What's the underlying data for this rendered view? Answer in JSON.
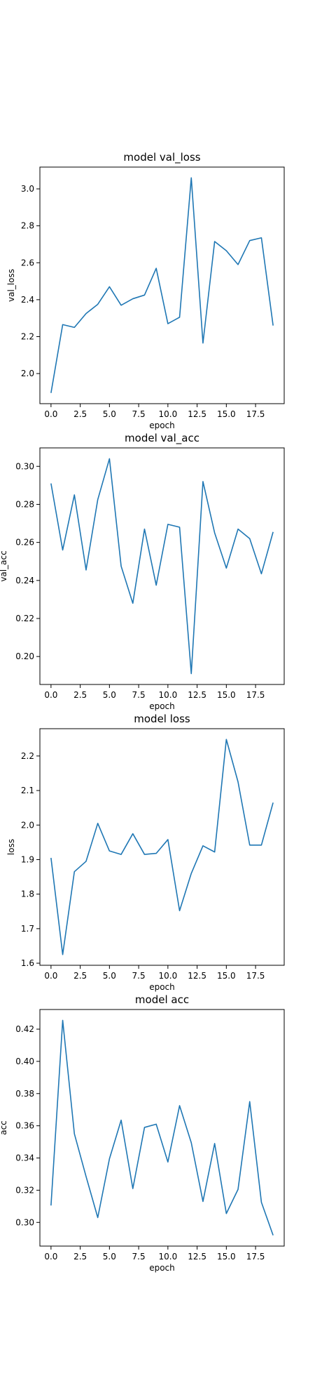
{
  "chart_data": [
    {
      "type": "line",
      "title": "model val_loss",
      "xlabel": "epoch",
      "ylabel": "val_loss",
      "x": [
        0,
        1,
        2,
        3,
        4,
        5,
        6,
        7,
        8,
        9,
        10,
        11,
        12,
        13,
        14,
        15,
        16,
        17,
        18,
        19
      ],
      "series": [
        {
          "values": [
            1.895,
            2.265,
            2.25,
            2.325,
            2.375,
            2.47,
            2.37,
            2.405,
            2.425,
            2.57,
            2.27,
            2.305,
            3.06,
            2.165,
            2.715,
            2.665,
            2.59,
            2.72,
            2.735,
            2.26
          ]
        }
      ],
      "xlim": [
        -0.95,
        19.95
      ],
      "ylim": [
        1.837,
        3.118
      ],
      "xticks": [
        0,
        2.5,
        5,
        7.5,
        10,
        12.5,
        15,
        17.5
      ],
      "xtick_labels": [
        "0.0",
        "2.5",
        "5.0",
        "7.5",
        "10.0",
        "12.5",
        "15.0",
        "17.5"
      ],
      "yticks": [
        2.0,
        2.2,
        2.4,
        2.6,
        2.8,
        3.0
      ],
      "ytick_labels": [
        "2.0",
        "2.2",
        "2.4",
        "2.6",
        "2.8",
        "3.0"
      ],
      "color": "#1f77b4",
      "grid": false
    },
    {
      "type": "line",
      "title": "model val_acc",
      "xlabel": "epoch",
      "ylabel": "val_acc",
      "x": [
        0,
        1,
        2,
        3,
        4,
        5,
        6,
        7,
        8,
        9,
        10,
        11,
        12,
        13,
        14,
        15,
        16,
        17,
        18,
        19
      ],
      "series": [
        {
          "values": [
            0.291,
            0.256,
            0.285,
            0.2455,
            0.2825,
            0.304,
            0.2475,
            0.228,
            0.267,
            0.2375,
            0.2695,
            0.268,
            0.191,
            0.292,
            0.265,
            0.2465,
            0.267,
            0.262,
            0.2435,
            0.2655
          ]
        }
      ],
      "xlim": [
        -0.95,
        19.95
      ],
      "ylim": [
        0.1853,
        0.3097
      ],
      "xticks": [
        0,
        2.5,
        5,
        7.5,
        10,
        12.5,
        15,
        17.5
      ],
      "xtick_labels": [
        "0.0",
        "2.5",
        "5.0",
        "7.5",
        "10.0",
        "12.5",
        "15.0",
        "17.5"
      ],
      "yticks": [
        0.2,
        0.22,
        0.24,
        0.26,
        0.28,
        0.3
      ],
      "ytick_labels": [
        "0.20",
        "0.22",
        "0.24",
        "0.26",
        "0.28",
        "0.30"
      ],
      "color": "#1f77b4",
      "grid": false
    },
    {
      "type": "line",
      "title": "model loss",
      "xlabel": "epoch",
      "ylabel": "loss",
      "x": [
        0,
        1,
        2,
        3,
        4,
        5,
        6,
        7,
        8,
        9,
        10,
        11,
        12,
        13,
        14,
        15,
        16,
        17,
        18,
        19
      ],
      "series": [
        {
          "values": [
            1.905,
            1.625,
            1.865,
            1.895,
            2.005,
            1.925,
            1.915,
            1.975,
            1.915,
            1.918,
            1.958,
            1.752,
            1.86,
            1.94,
            1.922,
            2.248,
            2.125,
            1.942,
            1.942,
            2.065
          ]
        }
      ],
      "xlim": [
        -0.95,
        19.95
      ],
      "ylim": [
        1.594,
        2.279
      ],
      "xticks": [
        0,
        2.5,
        5,
        7.5,
        10,
        12.5,
        15,
        17.5
      ],
      "xtick_labels": [
        "0.0",
        "2.5",
        "5.0",
        "7.5",
        "10.0",
        "12.5",
        "15.0",
        "17.5"
      ],
      "yticks": [
        1.6,
        1.7,
        1.8,
        1.9,
        2.0,
        2.1,
        2.2
      ],
      "ytick_labels": [
        "1.6",
        "1.7",
        "1.8",
        "1.9",
        "2.0",
        "2.1",
        "2.2"
      ],
      "color": "#1f77b4",
      "grid": false
    },
    {
      "type": "line",
      "title": "model acc",
      "xlabel": "epoch",
      "ylabel": "acc",
      "x": [
        0,
        1,
        2,
        3,
        4,
        5,
        6,
        7,
        8,
        9,
        10,
        11,
        12,
        13,
        14,
        15,
        16,
        17,
        18,
        19
      ],
      "series": [
        {
          "values": [
            0.3105,
            0.4255,
            0.355,
            0.3285,
            0.303,
            0.3395,
            0.3635,
            0.321,
            0.359,
            0.361,
            0.3375,
            0.3725,
            0.3495,
            0.313,
            0.349,
            0.3055,
            0.3205,
            0.375,
            0.3125,
            0.292
          ]
        }
      ],
      "xlim": [
        -0.95,
        19.95
      ],
      "ylim": [
        0.2853,
        0.4322
      ],
      "xticks": [
        0,
        2.5,
        5,
        7.5,
        10,
        12.5,
        15,
        17.5
      ],
      "xtick_labels": [
        "0.0",
        "2.5",
        "5.0",
        "7.5",
        "10.0",
        "12.5",
        "15.0",
        "17.5"
      ],
      "yticks": [
        0.3,
        0.32,
        0.34,
        0.36,
        0.38,
        0.4,
        0.42
      ],
      "ytick_labels": [
        "0.30",
        "0.32",
        "0.34",
        "0.36",
        "0.38",
        "0.40",
        "0.42"
      ],
      "color": "#1f77b4",
      "grid": false
    }
  ]
}
